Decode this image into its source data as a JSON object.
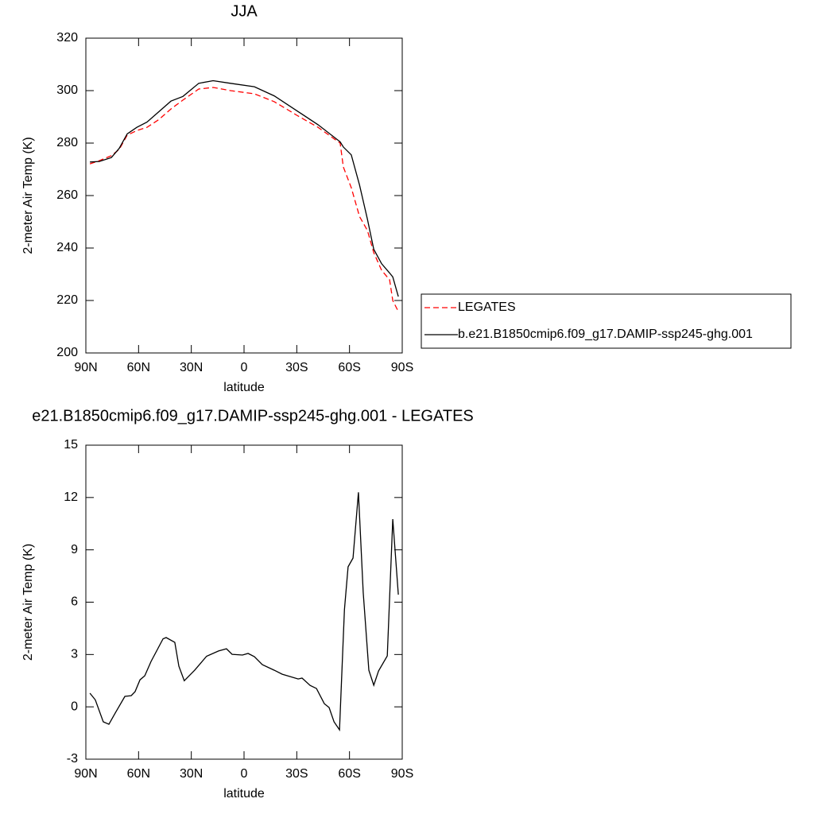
{
  "chart_data": [
    {
      "type": "line",
      "title": "JJA",
      "x_label": "latitude",
      "y_label": "2-meter Air Temp (K)",
      "x": [
        87.7,
        82.3,
        75.5,
        71,
        66.5,
        61,
        55.2,
        48.4,
        41.6,
        34.8,
        25.8,
        17.6,
        7.7,
        -5.9,
        -17.2,
        -30.8,
        -42.1,
        -54.7,
        -56.5,
        -61,
        -65.7,
        -70.2,
        -73.8,
        -78.3,
        -82.8,
        -84.6,
        -87.8
      ],
      "series": [
        {
          "name": "LEGATES",
          "color": "#ff0000",
          "dash": "dashed",
          "values": [
            272.1,
            273.3,
            275.2,
            277.6,
            283,
            284.8,
            286,
            289,
            293,
            296.4,
            300.6,
            301.2,
            300,
            298.8,
            295.8,
            290.3,
            286,
            280,
            270.9,
            263,
            252,
            246.7,
            238.2,
            231.5,
            227.9,
            220,
            215.8
          ]
        },
        {
          "name": "b.e21.B1850cmip6.f09_g17.DAMIP-ssp245-ghg.001",
          "color": "#000000",
          "dash": "solid",
          "values": [
            272.8,
            273,
            274.5,
            278,
            283.5,
            286,
            288,
            292,
            296,
            297.8,
            302.8,
            303.8,
            302.8,
            301.5,
            298,
            292,
            287,
            280.5,
            278.5,
            275.5,
            264,
            251,
            239.5,
            234,
            230.5,
            229,
            221.5
          ]
        }
      ],
      "xlim": [
        90,
        -90
      ],
      "xticks": [
        {
          "value": 90,
          "label": "90N"
        },
        {
          "value": 60,
          "label": "60N"
        },
        {
          "value": 30,
          "label": "30N"
        },
        0,
        {
          "value": -30,
          "label": "30S"
        },
        {
          "value": -60,
          "label": "60S"
        },
        {
          "value": -90,
          "label": "90S"
        }
      ],
      "ylim": [
        200,
        320
      ],
      "yticks": [
        200,
        220,
        240,
        260,
        280,
        300,
        320
      ],
      "legend": "right"
    },
    {
      "type": "line",
      "title": "e21.B1850cmip6.f09_g17.DAMIP-ssp245-ghg.001 - LEGATES",
      "x_label": "latitude",
      "y_label": "2-meter Air Temp (K)",
      "x": [
        87.7,
        84.6,
        80.1,
        76.9,
        73.3,
        67.8,
        64.2,
        62,
        59.2,
        56.5,
        52.9,
        46.1,
        44.3,
        39.4,
        37.1,
        34,
        28.1,
        21.3,
        14.5,
        10,
        6.8,
        0.9,
        -2.3,
        -5.9,
        -10.4,
        -17.2,
        -21.7,
        -30.8,
        -33,
        -37.6,
        -41.2,
        -45.7,
        -48.4,
        -51.2,
        -54.3,
        -57.1,
        -59.2,
        -62,
        -65.1,
        -67.8,
        -71,
        -73.8,
        -76.5,
        -81.5,
        -84.6,
        -87.8
      ],
      "series": [
        {
          "color": "#000000",
          "dash": "solid",
          "values": [
            0.78,
            0.4,
            -0.86,
            -1.0,
            -0.36,
            0.6,
            0.64,
            0.87,
            1.55,
            1.78,
            2.6,
            3.9,
            3.97,
            3.7,
            2.33,
            1.5,
            2.1,
            2.9,
            3.2,
            3.33,
            3.01,
            2.97,
            3.06,
            2.88,
            2.42,
            2.1,
            1.87,
            1.6,
            1.65,
            1.23,
            1.05,
            0.18,
            -0.04,
            -0.86,
            -1.32,
            5.57,
            8.03,
            8.53,
            12.3,
            6.57,
            2.1,
            1.24,
            2.06,
            2.92,
            10.76,
            6.43
          ]
        }
      ],
      "xlim": [
        90,
        -90
      ],
      "xticks": [
        {
          "value": 90,
          "label": "90N"
        },
        {
          "value": 60,
          "label": "60N"
        },
        {
          "value": 30,
          "label": "30N"
        },
        0,
        {
          "value": -30,
          "label": "30S"
        },
        {
          "value": -60,
          "label": "60S"
        },
        {
          "value": -90,
          "label": "90S"
        }
      ],
      "ylim": [
        -3,
        15
      ],
      "yticks": [
        -3,
        0,
        3,
        6,
        9,
        12,
        15
      ]
    }
  ]
}
